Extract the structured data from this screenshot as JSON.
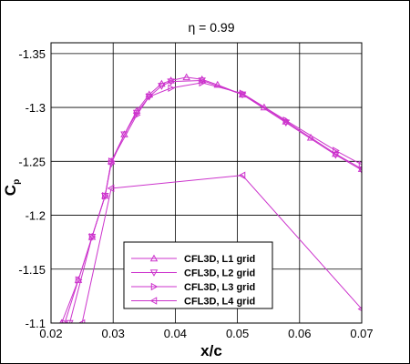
{
  "chart_data": {
    "type": "line",
    "title": "η = 0.99",
    "xlabel": "x/c",
    "ylabel": "C",
    "ylabel_sub": "p",
    "xlim": [
      0.02,
      0.07
    ],
    "ylim": [
      -1.1,
      -1.36
    ],
    "y_inverted": true,
    "grid": true,
    "legend_placement": "bottom-center",
    "color": "#cc33cc",
    "x_ticks": [
      "0.02",
      "0.03",
      "0.04",
      "0.05",
      "0.06",
      "0.07"
    ],
    "y_ticks": [
      "-1.35",
      "-1.3",
      "-1.25",
      "-1.2",
      "-1.15",
      "-1.1"
    ],
    "series": [
      {
        "name": "CFL3D, L1 grid",
        "marker": "triangle-up",
        "x": [
          0.0217,
          0.0244,
          0.0266,
          0.0287,
          0.0297,
          0.0318,
          0.0338,
          0.0358,
          0.0378,
          0.0393,
          0.0418,
          0.0443,
          0.0468,
          0.0508,
          0.0543,
          0.0578,
          0.0618,
          0.0658,
          0.07
        ],
        "y": [
          -1.1,
          -1.14,
          -1.18,
          -1.218,
          -1.25,
          -1.275,
          -1.297,
          -1.312,
          -1.322,
          -1.325,
          -1.328,
          -1.326,
          -1.321,
          -1.312,
          -1.3,
          -1.287,
          -1.272,
          -1.257,
          -1.243
        ]
      },
      {
        "name": "CFL3D, L2 grid",
        "marker": "triangle-down",
        "x": [
          0.023,
          0.0266,
          0.0287,
          0.0297,
          0.0318,
          0.0338,
          0.0358,
          0.0378,
          0.0393,
          0.0443,
          0.0508,
          0.0578,
          0.0658,
          0.07
        ],
        "y": [
          -1.1,
          -1.18,
          -1.218,
          -1.248,
          -1.275,
          -1.295,
          -1.31,
          -1.32,
          -1.324,
          -1.325,
          -1.312,
          -1.286,
          -1.256,
          -1.242
        ]
      },
      {
        "name": "CFL3D, L3 grid",
        "marker": "triangle-right",
        "x": [
          0.0222,
          0.0244,
          0.0266,
          0.0287,
          0.0297,
          0.0338,
          0.0358,
          0.0393,
          0.0443,
          0.0508,
          0.0578,
          0.0658,
          0.07
        ],
        "y": [
          -1.1,
          -1.14,
          -1.18,
          -1.218,
          -1.25,
          -1.293,
          -1.31,
          -1.318,
          -1.323,
          -1.313,
          -1.288,
          -1.26,
          -1.247
        ]
      },
      {
        "name": "CFL3D, L4 grid",
        "marker": "triangle-left",
        "x": [
          0.025,
          0.0297,
          0.0508,
          0.07
        ],
        "y": [
          -1.1,
          -1.225,
          -1.237,
          -1.113
        ]
      }
    ]
  }
}
